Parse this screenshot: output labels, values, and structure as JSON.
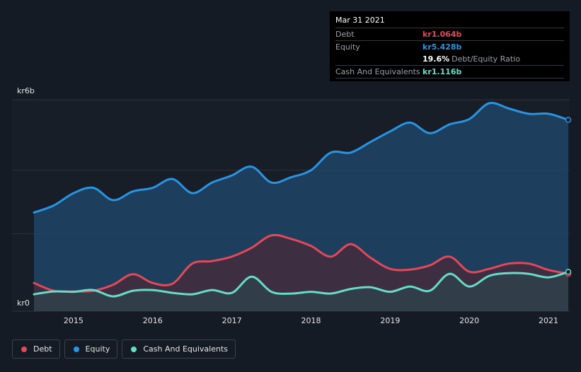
{
  "chart_data": {
    "type": "area",
    "y_axis": {
      "top_label": "kr6b",
      "bottom_label": "kr0",
      "ylim": [
        0,
        6
      ]
    },
    "xlim": [
      2014.5,
      2021.25
    ],
    "x_ticks": [
      "2015",
      "2016",
      "2017",
      "2018",
      "2019",
      "2020",
      "2021"
    ],
    "grid": true,
    "legend_placement": "bottom-left",
    "series": [
      {
        "name": "Debt",
        "color": "#e04a5a",
        "x": [
          2014.5,
          2014.75,
          2015.0,
          2015.25,
          2015.5,
          2015.75,
          2016.0,
          2016.25,
          2016.5,
          2016.75,
          2017.0,
          2017.25,
          2017.5,
          2017.75,
          2018.0,
          2018.25,
          2018.5,
          2018.75,
          2019.0,
          2019.25,
          2019.5,
          2019.75,
          2020.0,
          2020.25,
          2020.5,
          2020.75,
          2021.0,
          2021.25
        ],
        "values": [
          0.8,
          0.58,
          0.56,
          0.58,
          0.75,
          1.05,
          0.8,
          0.78,
          1.35,
          1.42,
          1.55,
          1.8,
          2.15,
          2.05,
          1.85,
          1.55,
          1.9,
          1.52,
          1.2,
          1.18,
          1.3,
          1.55,
          1.12,
          1.2,
          1.35,
          1.35,
          1.17,
          1.064
        ]
      },
      {
        "name": "Equity",
        "color": "#2b94e0",
        "x": [
          2014.5,
          2014.75,
          2015.0,
          2015.25,
          2015.5,
          2015.75,
          2016.0,
          2016.25,
          2016.5,
          2016.75,
          2017.0,
          2017.25,
          2017.5,
          2017.75,
          2018.0,
          2018.25,
          2018.5,
          2018.75,
          2019.0,
          2019.25,
          2019.5,
          2019.75,
          2020.0,
          2020.25,
          2020.5,
          2020.75,
          2021.0,
          2021.25
        ],
        "values": [
          2.8,
          3.0,
          3.35,
          3.5,
          3.15,
          3.4,
          3.5,
          3.75,
          3.35,
          3.65,
          3.85,
          4.1,
          3.65,
          3.8,
          4.0,
          4.5,
          4.5,
          4.8,
          5.1,
          5.35,
          5.05,
          5.3,
          5.45,
          5.9,
          5.75,
          5.6,
          5.6,
          5.428
        ]
      },
      {
        "name": "Cash And Equivalents",
        "color": "#67dcc8",
        "x": [
          2014.5,
          2014.75,
          2015.0,
          2015.25,
          2015.5,
          2015.75,
          2016.0,
          2016.25,
          2016.5,
          2016.75,
          2017.0,
          2017.25,
          2017.5,
          2017.75,
          2018.0,
          2018.25,
          2018.5,
          2018.75,
          2019.0,
          2019.25,
          2019.5,
          2019.75,
          2020.0,
          2020.25,
          2020.5,
          2020.75,
          2021.0,
          2021.25
        ],
        "values": [
          0.48,
          0.56,
          0.55,
          0.6,
          0.42,
          0.58,
          0.6,
          0.52,
          0.48,
          0.6,
          0.52,
          0.98,
          0.55,
          0.5,
          0.55,
          0.5,
          0.63,
          0.68,
          0.55,
          0.7,
          0.58,
          1.06,
          0.7,
          1.0,
          1.08,
          1.06,
          0.96,
          1.116
        ]
      }
    ]
  },
  "tooltip": {
    "date": "Mar 31 2021",
    "debt_label": "Debt",
    "debt_value": "kr1.064b",
    "equity_label": "Equity",
    "equity_value": "kr5.428b",
    "ratio_value": "19.6%",
    "ratio_label": "Debt/Equity Ratio",
    "cash_label": "Cash And Equivalents",
    "cash_value": "kr1.116b"
  },
  "legend": {
    "debt": "Debt",
    "equity": "Equity",
    "cash": "Cash And Equivalents"
  }
}
